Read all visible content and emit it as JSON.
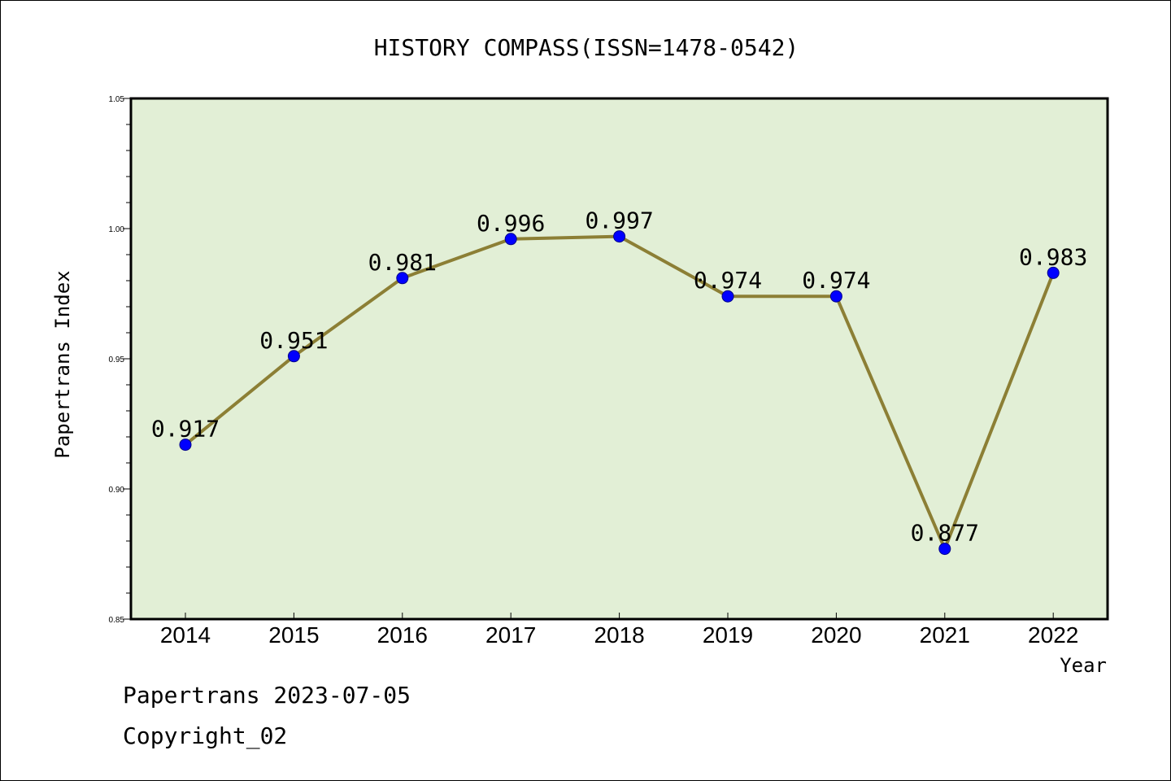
{
  "chart_data": {
    "type": "line",
    "title": "HISTORY COMPASS(ISSN=1478-0542)",
    "xlabel": "Year",
    "ylabel": "Papertrans Index",
    "x": [
      "2014",
      "2015",
      "2016",
      "2017",
      "2018",
      "2019",
      "2020",
      "2021",
      "2022"
    ],
    "values": [
      0.917,
      0.951,
      0.981,
      0.996,
      0.997,
      0.974,
      0.974,
      0.877,
      0.983
    ],
    "data_labels": [
      "0.917",
      "0.951",
      "0.981",
      "0.996",
      "0.997",
      "0.974",
      "0.974",
      "0.877",
      "0.983"
    ],
    "ylim": [
      0.85,
      1.05
    ],
    "yticks": [
      "0.85",
      "0.90",
      "0.95",
      "1.00",
      "1.05"
    ],
    "grid": false,
    "colors": {
      "plot_background": "#e2efd6",
      "line": "#8c7f35",
      "marker": "#0000ff"
    }
  },
  "footer": {
    "line1": "Papertrans 2023-07-05",
    "line2": "Copyright_02"
  }
}
